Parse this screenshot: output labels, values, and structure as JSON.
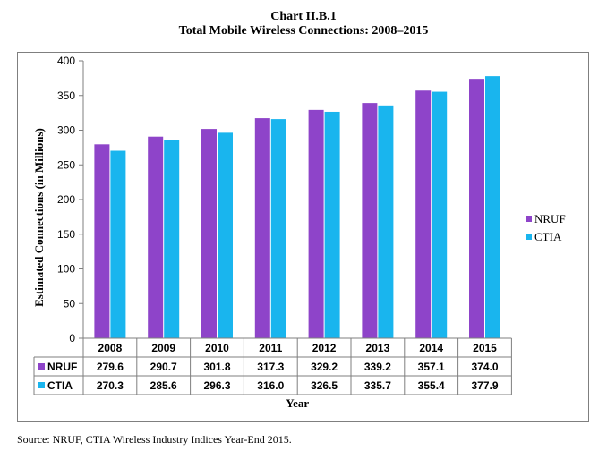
{
  "title": "Chart II.B.1",
  "subtitle": "Total Mobile Wireless Connections:  2008–2015",
  "source": "Source:  NRUF, CTIA Wireless Industry Indices Year-End 2015.",
  "colors": {
    "NRUF": "#8e44c9",
    "CTIA": "#19b5ee"
  },
  "chart_data": {
    "type": "bar",
    "categories": [
      "2008",
      "2009",
      "2010",
      "2011",
      "2012",
      "2013",
      "2014",
      "2015"
    ],
    "series": [
      {
        "name": "NRUF",
        "values": [
          279.6,
          290.7,
          301.8,
          317.3,
          329.2,
          339.2,
          357.1,
          374.0
        ]
      },
      {
        "name": "CTIA",
        "values": [
          270.3,
          285.6,
          296.3,
          316.0,
          326.5,
          335.7,
          355.4,
          377.9
        ]
      }
    ],
    "table_values": {
      "NRUF": [
        "279.6",
        "290.7",
        "301.8",
        "317.3",
        "329.2",
        "339.2",
        "357.1",
        "374.0"
      ],
      "CTIA": [
        "270.3",
        "285.6",
        "296.3",
        "316.0",
        "326.5",
        "335.7",
        "355.4",
        "377.9"
      ]
    },
    "xlabel": "Year",
    "ylabel": "Estimated Connections (in Millions)",
    "ylim": [
      0,
      400
    ],
    "yticks": [
      "0",
      "50",
      "100",
      "150",
      "200",
      "250",
      "300",
      "350",
      "400"
    ],
    "grid": false,
    "legend": "right"
  }
}
